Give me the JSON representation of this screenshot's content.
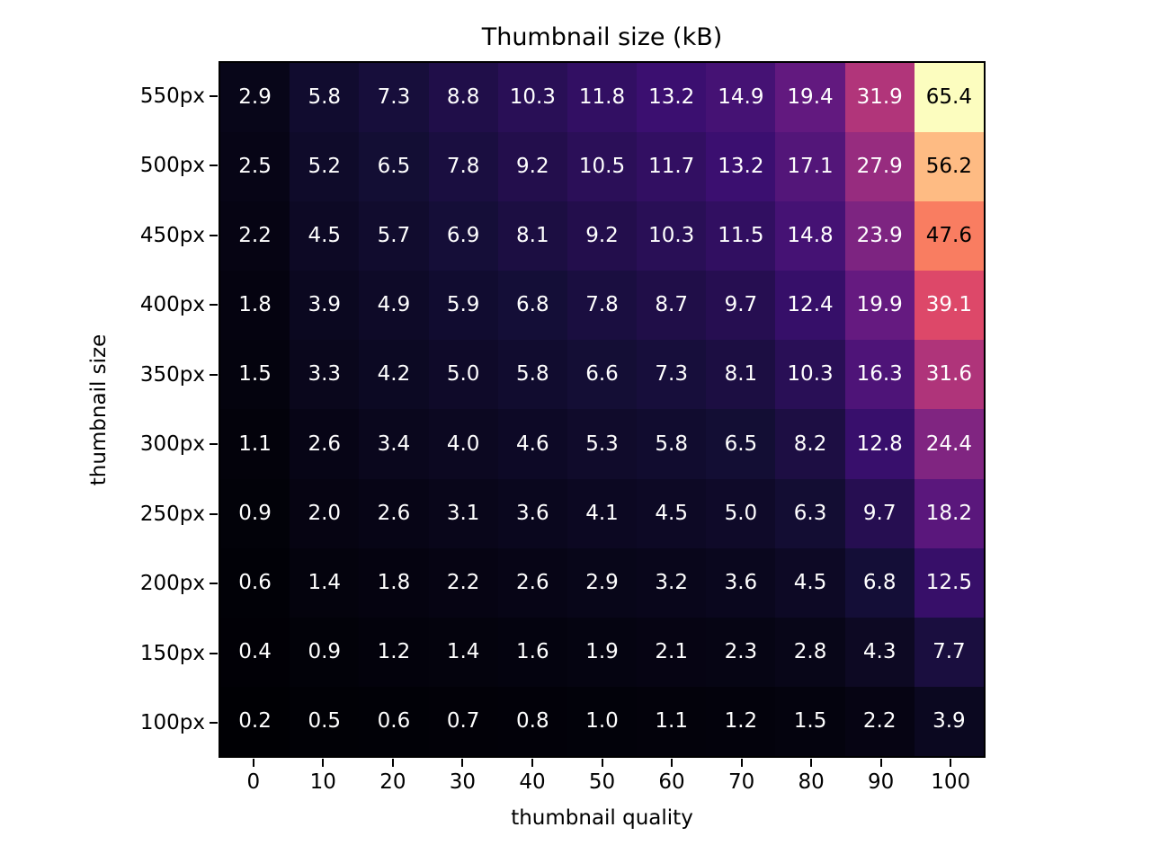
{
  "chart_data": {
    "type": "heatmap",
    "title": "Thumbnail size (kB)",
    "xlabel": "thumbnail quality",
    "ylabel": "thumbnail size",
    "x_ticklabels": [
      "0",
      "10",
      "20",
      "30",
      "40",
      "50",
      "60",
      "70",
      "80",
      "90",
      "100"
    ],
    "y_ticklabels": [
      "550px",
      "500px",
      "450px",
      "400px",
      "350px",
      "300px",
      "250px",
      "200px",
      "150px",
      "100px"
    ],
    "values": [
      [
        2.9,
        5.8,
        7.3,
        8.8,
        10.3,
        11.8,
        13.2,
        14.9,
        19.4,
        31.9,
        65.4
      ],
      [
        2.5,
        5.2,
        6.5,
        7.8,
        9.2,
        10.5,
        11.7,
        13.2,
        17.1,
        27.9,
        56.2
      ],
      [
        2.2,
        4.5,
        5.7,
        6.9,
        8.1,
        9.2,
        10.3,
        11.5,
        14.8,
        23.9,
        47.6
      ],
      [
        1.8,
        3.9,
        4.9,
        5.9,
        6.8,
        7.8,
        8.7,
        9.7,
        12.4,
        19.9,
        39.1
      ],
      [
        1.5,
        3.3,
        4.2,
        5.0,
        5.8,
        6.6,
        7.3,
        8.1,
        10.3,
        16.3,
        31.6
      ],
      [
        1.1,
        2.6,
        3.4,
        4.0,
        4.6,
        5.3,
        5.8,
        6.5,
        8.2,
        12.8,
        24.4
      ],
      [
        0.9,
        2.0,
        2.6,
        3.1,
        3.6,
        4.1,
        4.5,
        5.0,
        6.3,
        9.7,
        18.2
      ],
      [
        0.6,
        1.4,
        1.8,
        2.2,
        2.6,
        2.9,
        3.2,
        3.6,
        4.5,
        6.8,
        12.5
      ],
      [
        0.4,
        0.9,
        1.2,
        1.4,
        1.6,
        1.9,
        2.1,
        2.3,
        2.8,
        4.3,
        7.7
      ],
      [
        0.2,
        0.5,
        0.6,
        0.7,
        0.8,
        1.0,
        1.1,
        1.2,
        1.5,
        2.2,
        3.9
      ]
    ],
    "vmin": 0.2,
    "vmax": 65.4,
    "colormap": "magma",
    "colormap_anchors": [
      "#000004",
      "#140e36",
      "#3b0f70",
      "#641a80",
      "#8c2981",
      "#b73779",
      "#de4968",
      "#f7705c",
      "#fe9f6d",
      "#fecf92",
      "#fcfdbf"
    ],
    "annotation_text_colors": {
      "light": "#ffffff",
      "dark": "#000000"
    },
    "annotation_dark_text_threshold": 0.7,
    "value_format_decimals": 1,
    "grid": false,
    "legend": false
  }
}
